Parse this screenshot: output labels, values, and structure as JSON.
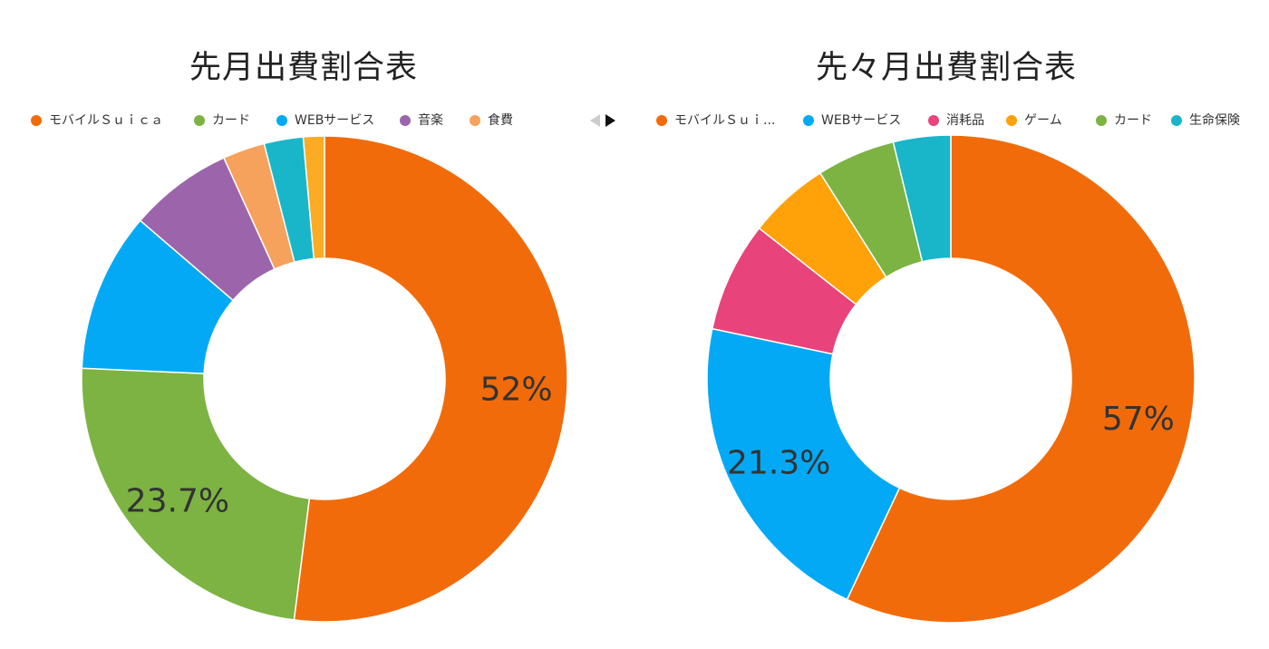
{
  "charts": [
    {
      "title": "先月出費割合表",
      "legend": [
        {
          "label": "モバイルＳｕｉｃａ",
          "color": "#f26b0a"
        },
        {
          "label": "カード",
          "color": "#7cb342"
        },
        {
          "label": "WEBサービス",
          "color": "#03a9f4"
        },
        {
          "label": "音楽",
          "color": "#9c64ab"
        },
        {
          "label": "食費",
          "color": "#f6a15c"
        }
      ],
      "pager": {
        "prev_icon": "triangle-left-icon",
        "next_icon": "triangle-right-icon"
      },
      "labels": [
        "52%",
        "23.7%"
      ]
    },
    {
      "title": "先々月出費割合表",
      "legend": [
        {
          "label": "モバイルＳｕｉ...",
          "color": "#f26b0a"
        },
        {
          "label": "WEBサービス",
          "color": "#03a9f4"
        },
        {
          "label": "消耗品",
          "color": "#e8437a"
        },
        {
          "label": "ゲーム",
          "color": "#ffa20a"
        },
        {
          "label": "カード",
          "color": "#7cb342"
        },
        {
          "label": "生命保険",
          "color": "#19b6c9"
        }
      ],
      "labels": [
        "57%",
        "21.3%"
      ]
    }
  ],
  "chart_data": [
    {
      "type": "pie",
      "title": "先月出費割合表",
      "categories": [
        "モバイルＳｕｉｃａ",
        "カード",
        "WEBサービス",
        "音楽",
        "食費",
        "",
        ""
      ],
      "values": [
        52,
        23.7,
        10.6,
        6.9,
        2.8,
        2.6,
        1.4
      ],
      "colors": [
        "#f26b0a",
        "#7cb342",
        "#03a9f4",
        "#9c64ab",
        "#f6a15c",
        "#19b6c9",
        "#fbab24"
      ],
      "data_labels": [
        "52%",
        "23.7%",
        "",
        "",
        "",
        "",
        ""
      ],
      "donut": true,
      "legend": "top"
    },
    {
      "type": "pie",
      "title": "先々月出費割合表",
      "categories": [
        "モバイルＳｕｉ...",
        "WEBサービス",
        "消耗品",
        "ゲーム",
        "カード",
        "生命保険"
      ],
      "values": [
        57,
        21.3,
        7.3,
        5.4,
        5.2,
        3.8
      ],
      "colors": [
        "#f26b0a",
        "#03a9f4",
        "#e8437a",
        "#ffa20a",
        "#7cb342",
        "#19b6c9"
      ],
      "data_labels": [
        "57%",
        "21.3%",
        "",
        "",
        "",
        ""
      ],
      "donut": true,
      "legend": "top"
    }
  ]
}
